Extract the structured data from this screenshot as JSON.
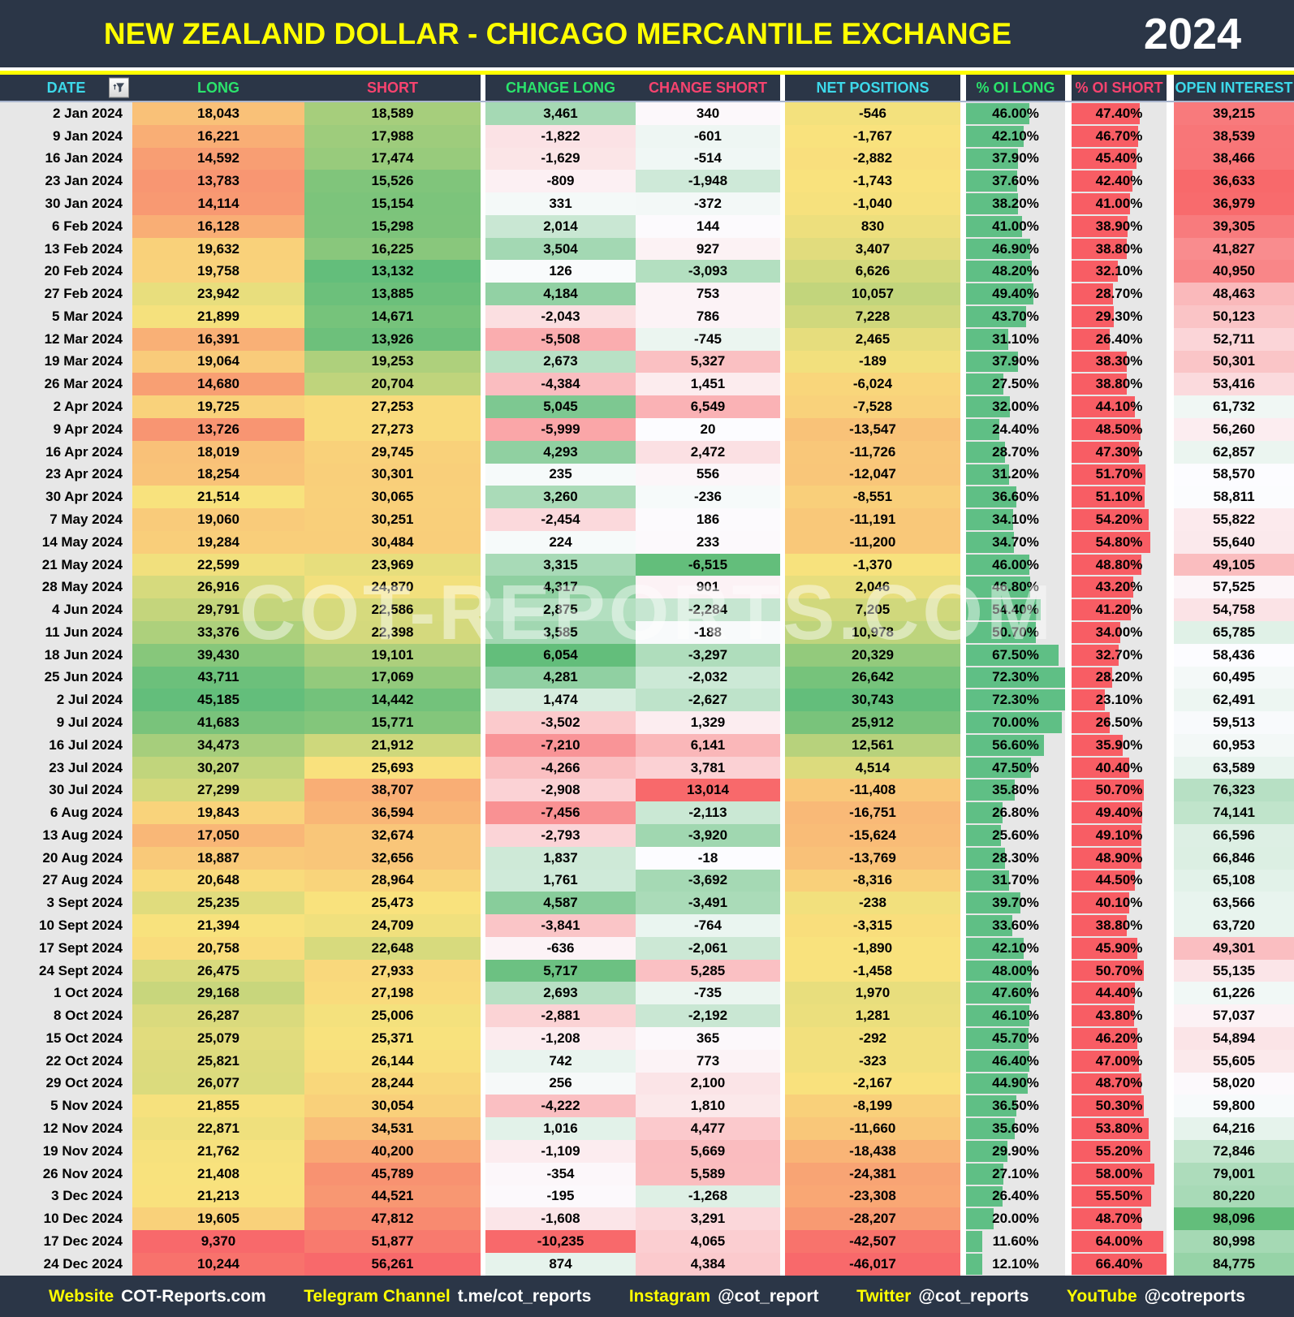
{
  "chart_data": {
    "type": "table",
    "title": "NEW ZEALAND DOLLAR - CHICAGO MERCANTILE EXCHANGE",
    "year": "2024",
    "columns": [
      {
        "key": "date",
        "label": "DATE",
        "color": "cyan"
      },
      {
        "key": "long",
        "label": "LONG",
        "color": "green",
        "scale": {
          "min": "#F8696B",
          "mid": "#F9E27D",
          "max": "#63BE7B",
          "midAt": "median"
        }
      },
      {
        "key": "short",
        "label": "SHORT",
        "color": "pink",
        "scale": {
          "min": "#63BE7B",
          "mid": "#F9E27D",
          "max": "#F8696B",
          "midAt": "median"
        }
      },
      {
        "key": "change_long",
        "label": "CHANGE LONG",
        "color": "green",
        "scale": {
          "min": "#F8696B",
          "mid": "#FCFCFF",
          "max": "#63BE7B",
          "midAt": 0
        }
      },
      {
        "key": "change_short",
        "label": "CHANGE SHORT",
        "color": "pink",
        "scale": {
          "min": "#63BE7B",
          "mid": "#FCFCFF",
          "max": "#F8696B",
          "midAt": 0
        }
      },
      {
        "key": "net_positions",
        "label": "NET POSITIONS",
        "color": "cyan",
        "scale": {
          "min": "#F8696B",
          "mid": "#F9E27D",
          "max": "#63BE7B",
          "midAt": "median"
        }
      },
      {
        "key": "oi_long_pct",
        "label": "% OI LONG",
        "color": "green",
        "bar": {
          "color": "#5FBF85",
          "track": "#E7E7E7"
        }
      },
      {
        "key": "oi_short_pct",
        "label": "% OI SHORT",
        "color": "pink",
        "bar": {
          "color": "#F85D64",
          "track": "#E7E7E7"
        }
      },
      {
        "key": "open_interest",
        "label": "OPEN INTEREST",
        "color": "cyan",
        "scale": {
          "min": "#F8696B",
          "mid": "#FCFCFF",
          "max": "#63BE7B",
          "midAt": "median"
        }
      }
    ],
    "rows": [
      [
        "2 Jan 2024",
        18043,
        18589,
        3461,
        340,
        -546,
        46.0,
        47.4,
        39215
      ],
      [
        "9 Jan 2024",
        16221,
        17988,
        -1822,
        -601,
        -1767,
        42.1,
        46.7,
        38539
      ],
      [
        "16 Jan 2024",
        14592,
        17474,
        -1629,
        -514,
        -2882,
        37.9,
        45.4,
        38466
      ],
      [
        "23 Jan 2024",
        13783,
        15526,
        -809,
        -1948,
        -1743,
        37.6,
        42.4,
        36633
      ],
      [
        "30 Jan 2024",
        14114,
        15154,
        331,
        -372,
        -1040,
        38.2,
        41.0,
        36979
      ],
      [
        "6 Feb 2024",
        16128,
        15298,
        2014,
        144,
        830,
        41.0,
        38.9,
        39305
      ],
      [
        "13 Feb 2024",
        19632,
        16225,
        3504,
        927,
        3407,
        46.9,
        38.8,
        41827
      ],
      [
        "20 Feb 2024",
        19758,
        13132,
        126,
        -3093,
        6626,
        48.2,
        32.1,
        40950
      ],
      [
        "27 Feb 2024",
        23942,
        13885,
        4184,
        753,
        10057,
        49.4,
        28.7,
        48463
      ],
      [
        "5 Mar 2024",
        21899,
        14671,
        -2043,
        786,
        7228,
        43.7,
        29.3,
        50123
      ],
      [
        "12 Mar 2024",
        16391,
        13926,
        -5508,
        -745,
        2465,
        31.1,
        26.4,
        52711
      ],
      [
        "19 Mar 2024",
        19064,
        19253,
        2673,
        5327,
        -189,
        37.9,
        38.3,
        50301
      ],
      [
        "26 Mar 2024",
        14680,
        20704,
        -4384,
        1451,
        -6024,
        27.5,
        38.8,
        53416
      ],
      [
        "2 Apr 2024",
        19725,
        27253,
        5045,
        6549,
        -7528,
        32.0,
        44.1,
        61732
      ],
      [
        "9 Apr 2024",
        13726,
        27273,
        -5999,
        20,
        -13547,
        24.4,
        48.5,
        56260
      ],
      [
        "16 Apr 2024",
        18019,
        29745,
        4293,
        2472,
        -11726,
        28.7,
        47.3,
        62857
      ],
      [
        "23 Apr 2024",
        18254,
        30301,
        235,
        556,
        -12047,
        31.2,
        51.7,
        58570
      ],
      [
        "30 Apr 2024",
        21514,
        30065,
        3260,
        -236,
        -8551,
        36.6,
        51.1,
        58811
      ],
      [
        "7 May 2024",
        19060,
        30251,
        -2454,
        186,
        -11191,
        34.1,
        54.2,
        55822
      ],
      [
        "14 May 2024",
        19284,
        30484,
        224,
        233,
        -11200,
        34.7,
        54.8,
        55640
      ],
      [
        "21 May 2024",
        22599,
        23969,
        3315,
        -6515,
        -1370,
        46.0,
        48.8,
        49105
      ],
      [
        "28 May 2024",
        26916,
        24870,
        4317,
        901,
        2046,
        46.8,
        43.2,
        57525
      ],
      [
        "4 Jun 2024",
        29791,
        22586,
        2875,
        -2284,
        7205,
        54.4,
        41.2,
        54758
      ],
      [
        "11 Jun 2024",
        33376,
        22398,
        3585,
        -188,
        10978,
        50.7,
        34.0,
        65785
      ],
      [
        "18 Jun 2024",
        39430,
        19101,
        6054,
        -3297,
        20329,
        67.5,
        32.7,
        58436
      ],
      [
        "25 Jun 2024",
        43711,
        17069,
        4281,
        -2032,
        26642,
        72.3,
        28.2,
        60495
      ],
      [
        "2 Jul 2024",
        45185,
        14442,
        1474,
        -2627,
        30743,
        72.3,
        23.1,
        62491
      ],
      [
        "9 Jul 2024",
        41683,
        15771,
        -3502,
        1329,
        25912,
        70.0,
        26.5,
        59513
      ],
      [
        "16 Jul 2024",
        34473,
        21912,
        -7210,
        6141,
        12561,
        56.6,
        35.9,
        60953
      ],
      [
        "23 Jul 2024",
        30207,
        25693,
        -4266,
        3781,
        4514,
        47.5,
        40.4,
        63589
      ],
      [
        "30 Jul 2024",
        27299,
        38707,
        -2908,
        13014,
        -11408,
        35.8,
        50.7,
        76323
      ],
      [
        "6 Aug 2024",
        19843,
        36594,
        -7456,
        -2113,
        -16751,
        26.8,
        49.4,
        74141
      ],
      [
        "13 Aug 2024",
        17050,
        32674,
        -2793,
        -3920,
        -15624,
        25.6,
        49.1,
        66596
      ],
      [
        "20 Aug 2024",
        18887,
        32656,
        1837,
        -18,
        -13769,
        28.3,
        48.9,
        66846
      ],
      [
        "27 Aug 2024",
        20648,
        28964,
        1761,
        -3692,
        -8316,
        31.7,
        44.5,
        65108
      ],
      [
        "3 Sept 2024",
        25235,
        25473,
        4587,
        -3491,
        -238,
        39.7,
        40.1,
        63566
      ],
      [
        "10 Sept 2024",
        21394,
        24709,
        -3841,
        -764,
        -3315,
        33.6,
        38.8,
        63720
      ],
      [
        "17 Sept 2024",
        20758,
        22648,
        -636,
        -2061,
        -1890,
        42.1,
        45.9,
        49301
      ],
      [
        "24 Sept 2024",
        26475,
        27933,
        5717,
        5285,
        -1458,
        48.0,
        50.7,
        55135
      ],
      [
        "1 Oct 2024",
        29168,
        27198,
        2693,
        -735,
        1970,
        47.6,
        44.4,
        61226
      ],
      [
        "8 Oct 2024",
        26287,
        25006,
        -2881,
        -2192,
        1281,
        46.1,
        43.8,
        57037
      ],
      [
        "15 Oct 2024",
        25079,
        25371,
        -1208,
        365,
        -292,
        45.7,
        46.2,
        54894
      ],
      [
        "22 Oct 2024",
        25821,
        26144,
        742,
        773,
        -323,
        46.4,
        47.0,
        55605
      ],
      [
        "29 Oct 2024",
        26077,
        28244,
        256,
        2100,
        -2167,
        44.9,
        48.7,
        58020
      ],
      [
        "5 Nov 2024",
        21855,
        30054,
        -4222,
        1810,
        -8199,
        36.5,
        50.3,
        59800
      ],
      [
        "12 Nov 2024",
        22871,
        34531,
        1016,
        4477,
        -11660,
        35.6,
        53.8,
        64216
      ],
      [
        "19 Nov 2024",
        21762,
        40200,
        -1109,
        5669,
        -18438,
        29.9,
        55.2,
        72846
      ],
      [
        "26 Nov 2024",
        21408,
        45789,
        -354,
        5589,
        -24381,
        27.1,
        58.0,
        79001
      ],
      [
        "3 Dec 2024",
        21213,
        44521,
        -195,
        -1268,
        -23308,
        26.4,
        55.5,
        80220
      ],
      [
        "10 Dec 2024",
        19605,
        47812,
        -1608,
        3291,
        -28207,
        20.0,
        48.7,
        98096
      ],
      [
        "17 Dec 2024",
        9370,
        51877,
        -10235,
        4065,
        -42507,
        11.6,
        64.0,
        80998
      ],
      [
        "24 Dec 2024",
        10244,
        56261,
        874,
        4384,
        -46017,
        12.1,
        66.4,
        84775
      ]
    ]
  },
  "watermark": "COT-REPORTS.COM",
  "theme": {
    "band_bg": "#2B3647",
    "title_color": "#FFFF00",
    "header_cyan": "#3DD9EA",
    "header_green": "#2BE36C",
    "header_pink": "#F7436F",
    "date_col_bg": "#E7E7E7"
  },
  "footer": {
    "items": [
      {
        "label": "Website",
        "value": "COT-Reports.com"
      },
      {
        "label": "Telegram Channel",
        "value": "t.me/cot_reports"
      },
      {
        "label": "Instagram",
        "value": "@cot_report"
      },
      {
        "label": "Twitter",
        "value": "@cot_reports"
      },
      {
        "label": "YouTube",
        "value": "@cotreports"
      }
    ]
  }
}
